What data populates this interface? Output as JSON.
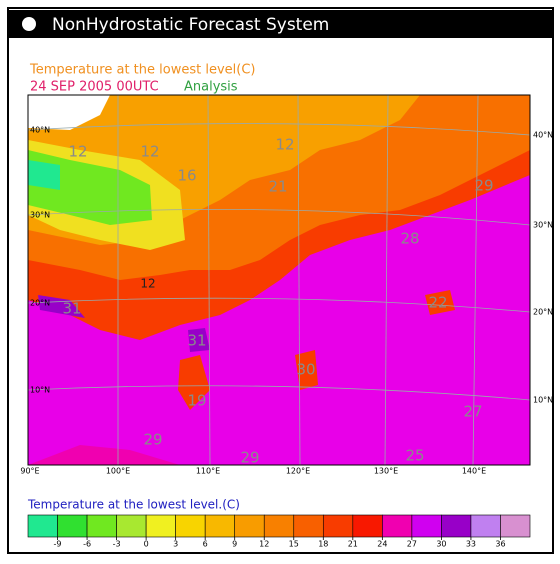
{
  "header": {
    "title": "NonHydrostatic Forecast System"
  },
  "map": {
    "variable": "Temperature at the lowest level(C)",
    "date": "24 SEP 2005 00UTC",
    "label": "Analysis",
    "lat_labels": [
      "40°N",
      "30°N",
      "20°N",
      "10°N"
    ],
    "lon_labels": [
      "90°E",
      "100°E",
      "110°E",
      "120°E",
      "130°E",
      "140°E"
    ],
    "contour_labels": [
      "12",
      "12",
      "12",
      "16",
      "21",
      "29",
      "28",
      "22",
      "31",
      "31",
      "30",
      "19",
      "29",
      "29",
      "25",
      "27",
      "12"
    ]
  },
  "colorbar": {
    "title": "Temperature at the lowest level.(C)",
    "ticks": [
      -9,
      -6,
      -3,
      0,
      3,
      6,
      9,
      12,
      15,
      18,
      21,
      24,
      27,
      30,
      33,
      36
    ],
    "colors": [
      "#20e890",
      "#30e030",
      "#70e820",
      "#a8e830",
      "#f0f020",
      "#f8d400",
      "#f8b800",
      "#f89c00",
      "#f88000",
      "#f86000",
      "#f83c00",
      "#f81800",
      "#f000b0",
      "#d000f0",
      "#9800c8",
      "#c080f0",
      "#d890d0"
    ]
  }
}
